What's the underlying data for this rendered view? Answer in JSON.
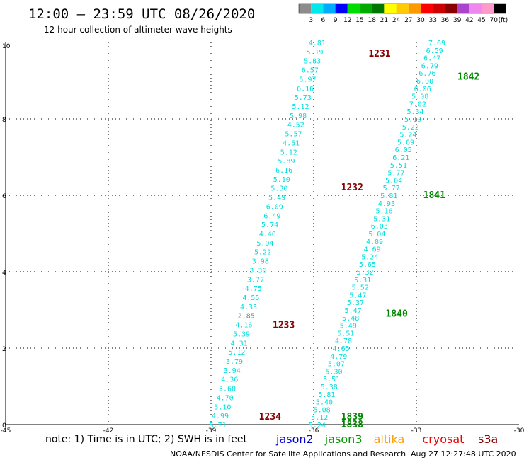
{
  "header": {
    "title": "12:00 – 23:59 UTC 08/26/2020",
    "subtitle": "12 hour collection of altimeter wave heights",
    "footer_note": "note: 1) Time is in UTC; 2) SWH is in feet",
    "credit": "NOAA/NESDIS Center for Satellite Applications and Research",
    "timestamp": "Aug 27 12:27:48 UTC 2020"
  },
  "color_scale": {
    "unit": "(ft)",
    "labels": [
      "3",
      "6",
      "9",
      "12",
      "15",
      "18",
      "21",
      "24",
      "27",
      "30",
      "33",
      "36",
      "39",
      "42",
      "45",
      "70"
    ],
    "colors": [
      "#8c8c8c",
      "#00e8e8",
      "#00aaff",
      "#0000ff",
      "#00dd00",
      "#00aa00",
      "#007700",
      "#ffff00",
      "#ffcc00",
      "#ff9900",
      "#ff0000",
      "#cc0000",
      "#880000",
      "#aa44cc",
      "#ee88ee",
      "#ff99cc",
      "#000000"
    ]
  },
  "legend": {
    "entries": [
      {
        "name": "jason2",
        "color": "#0000dd"
      },
      {
        "name": "jason3",
        "color": "#009900"
      },
      {
        "name": "altika",
        "color": "#ff9900"
      },
      {
        "name": "cryosat",
        "color": "#ee0000"
      },
      {
        "name": "s3a",
        "color": "#880000"
      }
    ]
  },
  "chart_data": {
    "type": "scatter",
    "title": "12:00 – 23:59 UTC 08/26/2020",
    "xlim": [
      -45,
      -30
    ],
    "ylim": [
      0,
      10
    ],
    "xticks": [
      "-45",
      "-42",
      "-39",
      "-36",
      "-33",
      "-30"
    ],
    "yticks": [
      "0",
      "2",
      "4",
      "6",
      "8",
      "10"
    ],
    "grid": true,
    "unit": "feet",
    "series": [
      {
        "name": "s3a",
        "color_label": "#880000",
        "tracks": [
          {
            "x_start": -38.8,
            "x_end": -35.9,
            "values": [
              "5.71",
              "4.99",
              "5.10",
              "4.70",
              "3.60",
              "4.36",
              "3.94",
              "3.79",
              "5.12",
              "4.31",
              "5.39",
              "4.16",
              "2.85",
              "4.33",
              "4.55",
              "4.75",
              "3.77",
              "3.36",
              "3.98",
              "5.22",
              "5.04",
              "4.40",
              "5.74",
              "6.49",
              "6.09",
              "5.49",
              "5.30",
              "5.10",
              "6.16",
              "5.89",
              "5.12",
              "4.51",
              "5.57",
              "4.52",
              "5.98",
              "5.12",
              "5.73",
              "6.16",
              "5.97",
              "6.57",
              "5.83",
              "5.19",
              "4.81"
            ],
            "passes": [
              {
                "label": "1234",
                "lon": -37.6,
                "lat": 0.2
              },
              {
                "label": "1233",
                "lon": -37.2,
                "lat": 2.6
              },
              {
                "label": "1232",
                "lon": -35.2,
                "lat": 6.2
              },
              {
                "label": "1231",
                "lon": -34.4,
                "lat": 9.7
              }
            ]
          }
        ]
      },
      {
        "name": "jason3",
        "color_label": "#008800",
        "tracks": [
          {
            "x_start": -35.9,
            "x_end": -32.4,
            "values": [
              "5.24",
              "5.12",
              "5.08",
              "5.40",
              "5.81",
              "5.38",
              "5.51",
              "5.30",
              "5.07",
              "4.79",
              "4.65",
              "4.78",
              "5.51",
              "5.49",
              "5.48",
              "5.47",
              "5.37",
              "5.47",
              "5.52",
              "5.31",
              "5.32",
              "5.65",
              "5.24",
              "4.69",
              "4.89",
              "5.04",
              "6.03",
              "5.31",
              "5.16",
              "4.93",
              "5.81",
              "5.77",
              "5.04",
              "5.77",
              "5.51",
              "6.21",
              "6.05",
              "5.69",
              "5.24",
              "5.22",
              "5.10",
              "5.34",
              "7.02",
              "5.08",
              "6.06",
              "6.00",
              "6.76",
              "6.79",
              "6.47",
              "6.59",
              "7.69"
            ],
            "passes": [
              {
                "label": "1838",
                "lon": -35.2,
                "lat": 0.0
              },
              {
                "label": "1839",
                "lon": -35.2,
                "lat": 0.2
              },
              {
                "label": "1840",
                "lon": -33.9,
                "lat": 2.9
              },
              {
                "label": "1841",
                "lon": -32.8,
                "lat": 6.0
              },
              {
                "label": "1842",
                "lon": -31.8,
                "lat": 9.1
              }
            ]
          }
        ]
      }
    ]
  }
}
